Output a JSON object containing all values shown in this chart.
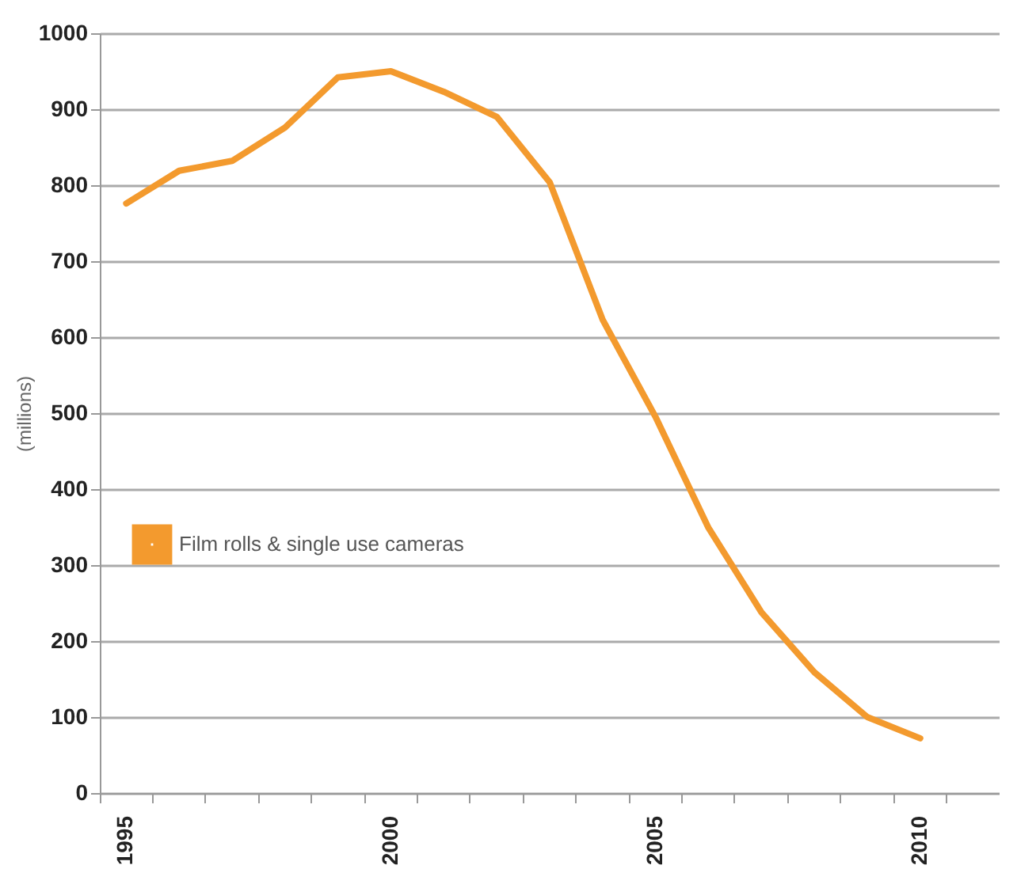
{
  "chart_data": {
    "type": "line",
    "ylabel": "(millions)",
    "categories": [
      "1995",
      null,
      null,
      null,
      null,
      "2000",
      null,
      null,
      null,
      null,
      "2005",
      null,
      null,
      null,
      null,
      "2010",
      null
    ],
    "series": [
      {
        "name": "Film rolls & single use cameras",
        "color": "#f39a2e",
        "values": [
          776,
          819,
          832,
          876,
          942,
          950,
          923,
          890,
          804,
          623,
          495,
          349,
          238,
          159,
          100,
          72,
          null
        ]
      }
    ],
    "ylim": [
      0,
      1000
    ],
    "yticks": [
      0,
      100,
      200,
      300,
      400,
      500,
      600,
      700,
      800,
      900,
      1000
    ],
    "grid": "y",
    "legend": "left",
    "line_style": "solid",
    "marker": "none"
  }
}
